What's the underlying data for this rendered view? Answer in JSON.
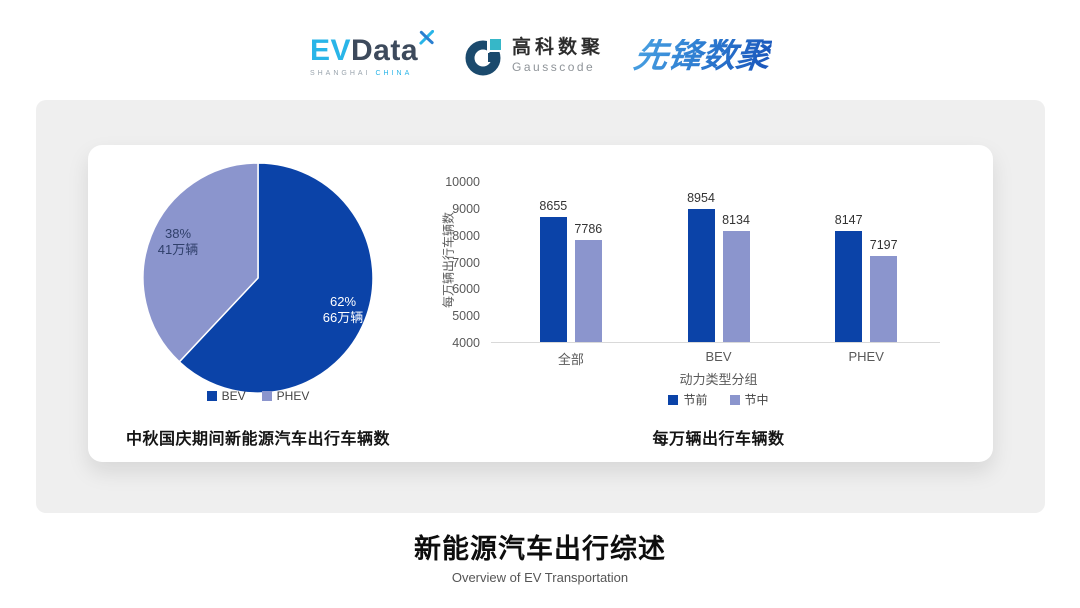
{
  "header": {
    "evdata": {
      "ev": "EV",
      "data": "Data",
      "sub_left": "SHANGHAI",
      "sub_right": "CHINA"
    },
    "gausscode": {
      "cn": "高科数聚",
      "en": "Gausscode"
    },
    "xianfeng": {
      "text": "先锋数聚"
    }
  },
  "icons": {
    "evdata_mark": "x-cross-leaf-icon",
    "gausscode_mark": "g-ring-icon"
  },
  "colors": {
    "primary_blue": "#0b43a8",
    "light_blue": "#8b95cd",
    "panel_bg": "#efefef",
    "axis_text": "#595959"
  },
  "chart_data": [
    {
      "type": "pie",
      "title": "中秋国庆期间新能源汽车出行车辆数",
      "slices": [
        {
          "name": "BEV",
          "pct": 62,
          "label_line1": "62%",
          "label_line2": "66万辆",
          "color": "#0b43a8",
          "label_color": "#ffffff"
        },
        {
          "name": "PHEV",
          "pct": 38,
          "label_line1": "38%",
          "label_line2": "41万辆",
          "color": "#8b95cd",
          "label_color": "#2f3f6a"
        }
      ],
      "legend": [
        "BEV",
        "PHEV"
      ],
      "legend_position": "bottom",
      "start_angle": "top",
      "direction": "clockwise"
    },
    {
      "type": "bar",
      "title": "每万辆出行车辆数",
      "categories": [
        "全部",
        "BEV",
        "PHEV"
      ],
      "series": [
        {
          "name": "节前",
          "color": "#0b43a8",
          "values": [
            8655,
            8954,
            8147
          ]
        },
        {
          "name": "节中",
          "color": "#8b95cd",
          "values": [
            7786,
            8134,
            7197
          ]
        }
      ],
      "xlabel": "动力类型分组",
      "ylabel": "每万辆出行车辆数",
      "ylim": [
        4000,
        10000
      ],
      "yticks": [
        10000,
        9000,
        8000,
        7000,
        6000,
        5000,
        4000
      ],
      "grid": false,
      "legend_position": "bottom"
    }
  ],
  "footer": {
    "title": "新能源汽车出行综述",
    "subtitle": "Overview of EV Transportation"
  }
}
